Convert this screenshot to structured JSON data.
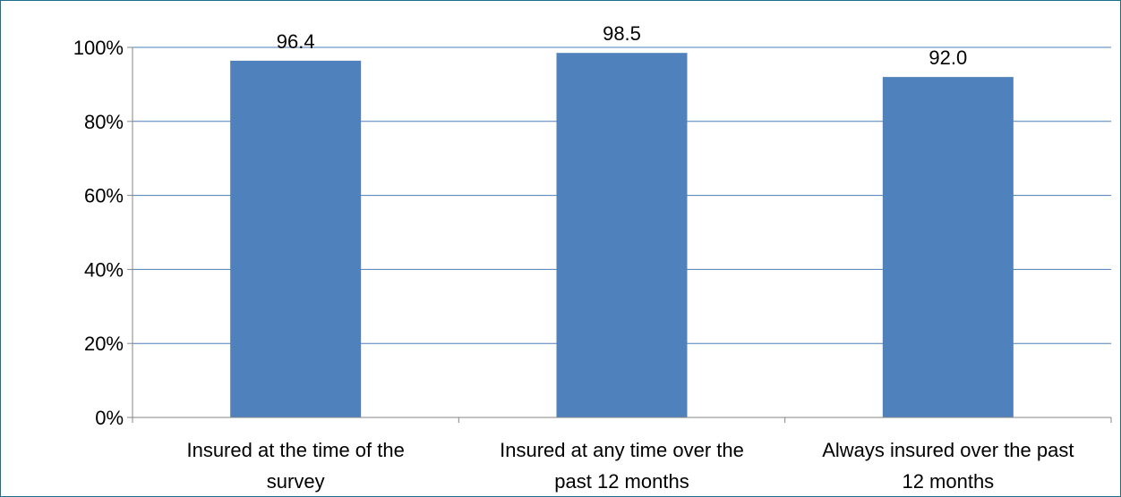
{
  "chart_data": {
    "type": "bar",
    "categories": [
      [
        "Insured at the time of the",
        "survey"
      ],
      [
        "Insured at any time over the",
        "past 12 months"
      ],
      [
        "Always insured over the past",
        "12 months"
      ]
    ],
    "values": [
      96.4,
      98.5,
      92.0
    ],
    "data_labels": [
      "96.4",
      "98.5",
      "92.0"
    ],
    "ylim": [
      0,
      100
    ],
    "yticks": [
      0,
      20,
      40,
      60,
      80,
      100
    ],
    "ytick_labels": [
      "0%",
      "20%",
      "40%",
      "60%",
      "80%",
      "100%"
    ],
    "grid": true,
    "legend": "none",
    "colors": {
      "bar": "#4f81bd",
      "grid": "#4a7ebb",
      "axis": "#868686",
      "frame": "#1f6e8c"
    }
  }
}
